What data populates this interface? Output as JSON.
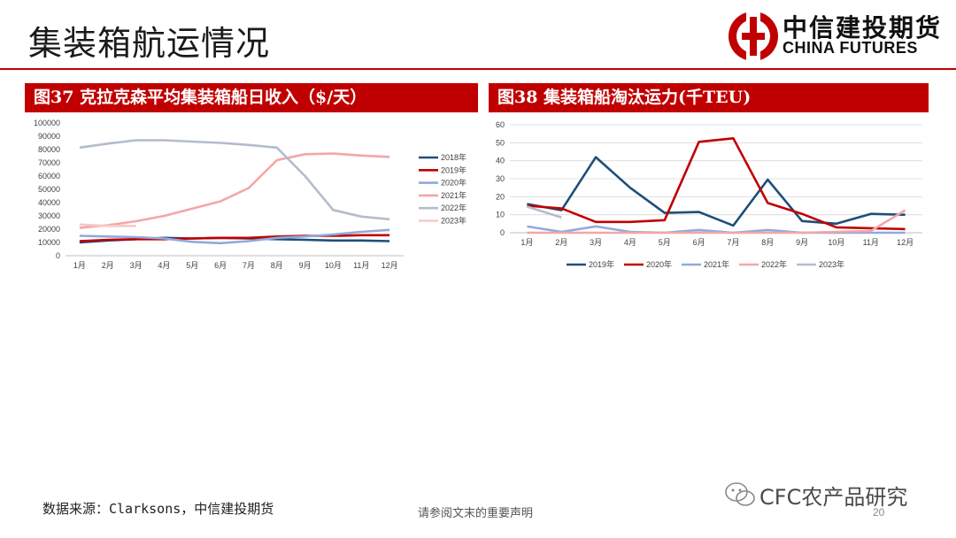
{
  "page": {
    "title": "集装箱航运情况",
    "logo_cn": "中信建投期货",
    "logo_en": "CHINA FUTURES",
    "source": "数据来源：Clarksons，中信建投期货",
    "disclaimer": "请参阅文末的重要声明",
    "watermark": "CFC农产品研究",
    "page_number": "20",
    "accent_color": "#c00000"
  },
  "chart_data": [
    {
      "id": "fig37",
      "type": "line",
      "title": "图37 克拉克森平均集装箱船日收入（$/天）",
      "categories": [
        "1月",
        "2月",
        "3月",
        "4月",
        "5月",
        "6月",
        "7月",
        "8月",
        "9月",
        "10月",
        "11月",
        "12月"
      ],
      "yticks": [
        "0",
        "10000",
        "20000",
        "30000",
        "40000",
        "50000",
        "60000",
        "70000",
        "80000",
        "90000",
        "100000"
      ],
      "ylim": [
        0,
        100000
      ],
      "legend_position": "right",
      "series": [
        {
          "name": "2018年",
          "color": "#1f4e79",
          "values": [
            10000,
            11500,
            12500,
            13500,
            13000,
            13500,
            13000,
            12500,
            12000,
            11500,
            11500,
            11000
          ]
        },
        {
          "name": "2019年",
          "color": "#c00000",
          "values": [
            11000,
            12000,
            12500,
            12500,
            13000,
            13500,
            13500,
            14500,
            15000,
            15000,
            15500,
            15500
          ]
        },
        {
          "name": "2020年",
          "color": "#8faadc",
          "values": [
            15000,
            14500,
            14000,
            13000,
            10500,
            9500,
            11000,
            13500,
            14500,
            16000,
            18000,
            19500
          ]
        },
        {
          "name": "2021年",
          "color": "#f4a6a6",
          "values": [
            21000,
            23000,
            26000,
            30000,
            35500,
            41000,
            51000,
            72000,
            76500,
            77000,
            75500,
            74500
          ]
        },
        {
          "name": "2022年",
          "color": "#b4bccc",
          "values": [
            81500,
            84500,
            87000,
            87000,
            86000,
            85000,
            83500,
            81500,
            60000,
            34500,
            29500,
            27500
          ]
        },
        {
          "name": "2023年",
          "color": "#f8c8c8",
          "values": [
            23500,
            22500,
            22500,
            null,
            null,
            null,
            null,
            null,
            null,
            null,
            null,
            null
          ]
        }
      ]
    },
    {
      "id": "fig38",
      "type": "line",
      "title": "图38 集装箱船淘汰运力(千TEU)",
      "categories": [
        "1月",
        "2月",
        "3月",
        "4月",
        "5月",
        "6月",
        "7月",
        "8月",
        "9月",
        "10月",
        "11月",
        "12月"
      ],
      "yticks": [
        "0",
        "10",
        "20",
        "30",
        "40",
        "50",
        "60"
      ],
      "ylim": [
        0,
        60
      ],
      "legend_position": "bottom",
      "series": [
        {
          "name": "2019年",
          "color": "#1f4e79",
          "values": [
            16,
            12.5,
            42,
            25,
            11,
            11.5,
            4,
            29.5,
            6.5,
            5,
            10.5,
            10
          ]
        },
        {
          "name": "2020年",
          "color": "#c00000",
          "values": [
            15,
            13.5,
            6,
            6,
            7,
            50.5,
            52.5,
            16.5,
            10.5,
            3,
            2.5,
            2
          ]
        },
        {
          "name": "2021年",
          "color": "#8faadc",
          "values": [
            3.5,
            0.5,
            3.5,
            0.5,
            0,
            1.5,
            0,
            1.5,
            0,
            0,
            0,
            0
          ]
        },
        {
          "name": "2022年",
          "color": "#f4a6a6",
          "values": [
            0,
            0,
            0,
            0,
            0,
            0,
            0,
            0,
            0,
            0.5,
            1,
            12.5
          ]
        },
        {
          "name": "2023年",
          "color": "#b4bccc",
          "values": [
            14.5,
            8.5,
            null,
            null,
            null,
            null,
            null,
            null,
            null,
            null,
            null,
            null
          ]
        }
      ]
    }
  ]
}
